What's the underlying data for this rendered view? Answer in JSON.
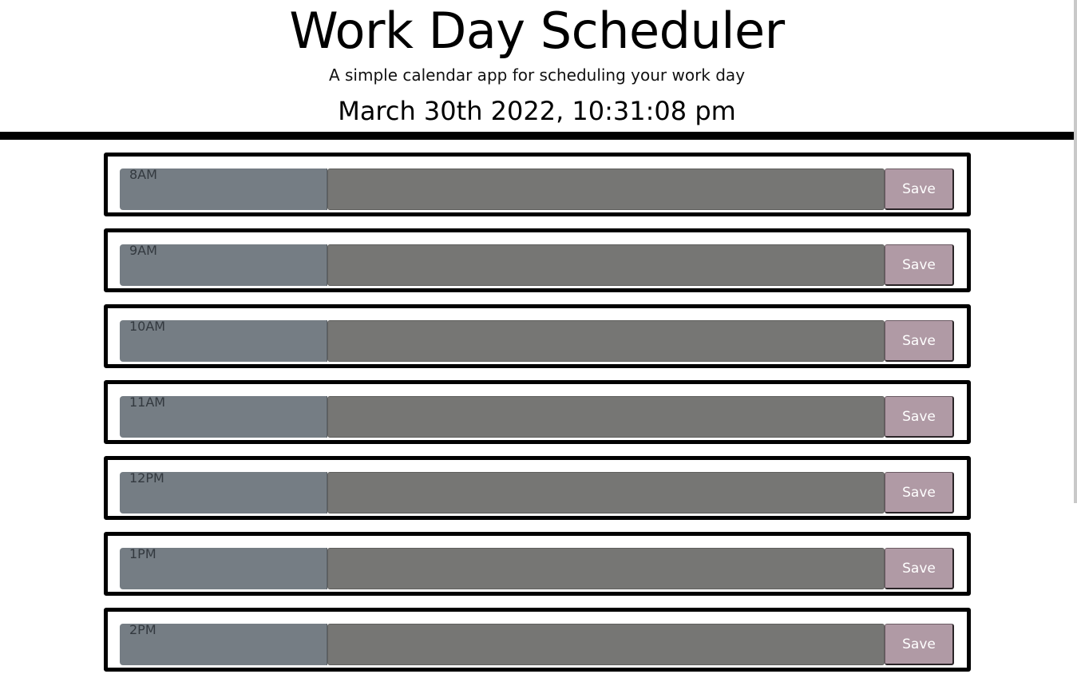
{
  "header": {
    "title": "Work Day Scheduler",
    "subtitle": "A simple calendar app for scheduling your work day",
    "current_date": "March 30th 2022, 10:31:08 pm"
  },
  "colors": {
    "hour_block": "#757d84",
    "past_textarea": "#767674",
    "save_button": "#b09aa5",
    "border": "#000000"
  },
  "time_blocks": [
    {
      "hour": "8AM",
      "text": "",
      "save_label": "Save"
    },
    {
      "hour": "9AM",
      "text": "",
      "save_label": "Save"
    },
    {
      "hour": "10AM",
      "text": "",
      "save_label": "Save"
    },
    {
      "hour": "11AM",
      "text": "",
      "save_label": "Save"
    },
    {
      "hour": "12PM",
      "text": "",
      "save_label": "Save"
    },
    {
      "hour": "1PM",
      "text": "",
      "save_label": "Save"
    },
    {
      "hour": "2PM",
      "text": "",
      "save_label": "Save"
    }
  ]
}
